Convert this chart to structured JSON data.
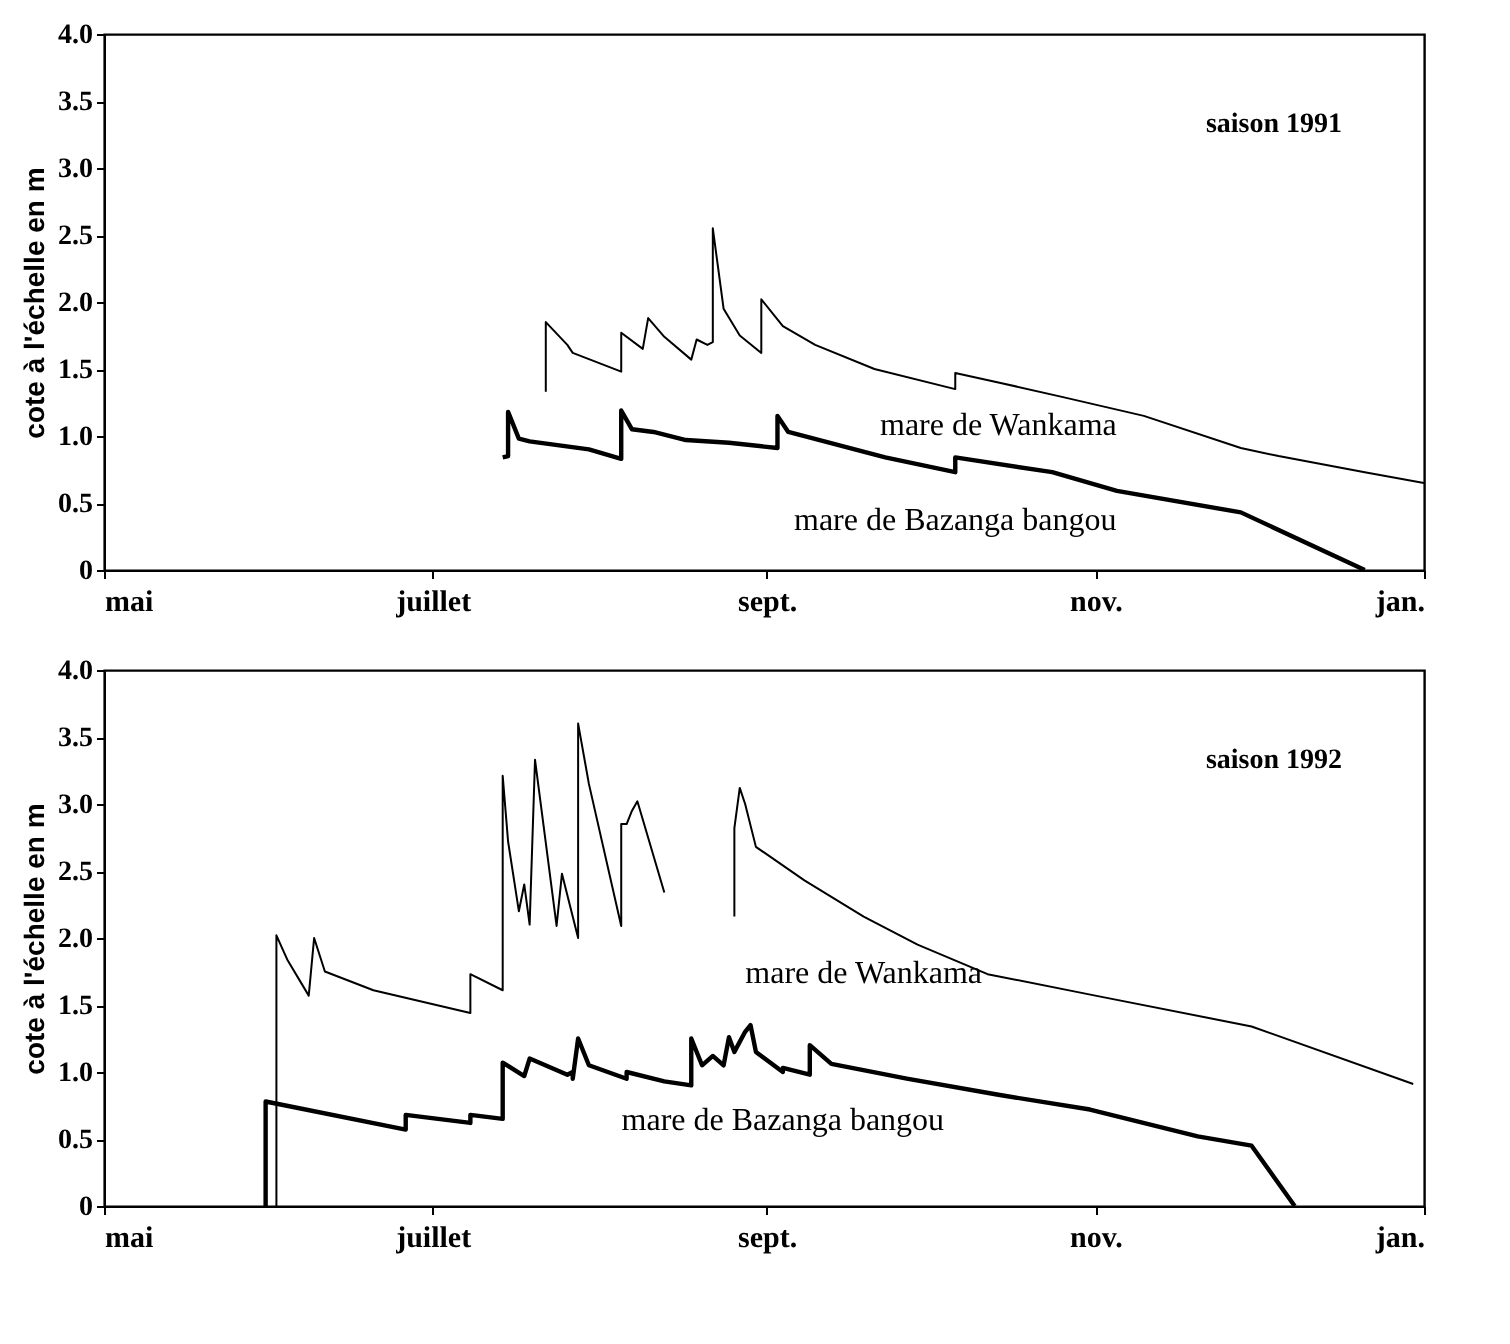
{
  "chart_data": [
    {
      "type": "line",
      "ylabel": "cote à l'échelle en m",
      "annotations": [
        "saison 1991"
      ],
      "xlim": [
        "1991-05-01",
        "1992-01-01"
      ],
      "xticks": [
        {
          "value": "1991-05-01",
          "label": "mai"
        },
        {
          "value": "1991-07-01",
          "label": "juillet"
        },
        {
          "value": "1991-09-01",
          "label": "sept."
        },
        {
          "value": "1991-11-01",
          "label": "nov."
        },
        {
          "value": "1992-01-01",
          "label": "jan."
        }
      ],
      "ylim": [
        0,
        4
      ],
      "yticks": [
        0,
        0.5,
        {
          "value": 1,
          "label": "1.0"
        },
        1.5,
        {
          "value": 2,
          "label": "2.0"
        },
        2.5,
        {
          "value": 3,
          "label": "3.0"
        },
        3.5,
        {
          "value": 4,
          "label": "4.0"
        }
      ],
      "grid": false,
      "legend": false,
      "marker": "none",
      "line_style": "solid",
      "series": [
        {
          "name": "mare de Wankama",
          "color": "#000000",
          "x": [
            "1991-07-22",
            "1991-07-22",
            "1991-07-26",
            "1991-07-27",
            "1991-08-05",
            "1991-08-05",
            "1991-08-09",
            "1991-08-10",
            "1991-08-13",
            "1991-08-18",
            "1991-08-19",
            "1991-08-21",
            "1991-08-22",
            "1991-08-22",
            "1991-08-24",
            "1991-08-27",
            "1991-08-31",
            "1991-08-31",
            "1991-09-04",
            "1991-09-10",
            "1991-09-21",
            "1991-10-06",
            "1991-10-06",
            "1991-10-14",
            "1991-10-26",
            "1991-11-10",
            "1991-11-28",
            "1991-12-05",
            "1991-12-21",
            "1992-01-01"
          ],
          "values": [
            1.33,
            1.85,
            1.68,
            1.62,
            1.48,
            1.77,
            1.65,
            1.88,
            1.74,
            1.57,
            1.72,
            1.68,
            1.7,
            2.55,
            1.95,
            1.75,
            1.62,
            2.02,
            1.82,
            1.68,
            1.5,
            1.35,
            1.47,
            1.4,
            1.29,
            1.15,
            0.91,
            0.85,
            0.73,
            0.65
          ]
        },
        {
          "name": "mare de Bazanga bangou",
          "color": "#000000",
          "x": [
            "1991-07-14",
            "1991-07-15",
            "1991-07-15",
            "1991-07-17",
            "1991-07-19",
            "1991-07-30",
            "1991-08-05",
            "1991-08-05",
            "1991-08-07",
            "1991-08-11",
            "1991-08-17",
            "1991-08-25",
            "1991-09-03",
            "1991-09-03",
            "1991-09-05",
            "1991-09-23",
            "1991-10-06",
            "1991-10-06",
            "1991-10-24",
            "1991-11-05",
            "1991-11-28",
            "1991-12-21"
          ],
          "values": [
            0.84,
            0.85,
            1.18,
            0.98,
            0.96,
            0.9,
            0.83,
            1.19,
            1.05,
            1.03,
            0.97,
            0.95,
            0.91,
            1.15,
            1.03,
            0.84,
            0.73,
            0.84,
            0.73,
            0.59,
            0.43,
            0
          ]
        }
      ]
    },
    {
      "type": "line",
      "ylabel": "cote à l'échelle en m",
      "annotations": [
        "saison 1992"
      ],
      "xlim": [
        "1992-05-01",
        "1993-01-01"
      ],
      "xticks": [
        {
          "value": "1992-05-01",
          "label": "mai"
        },
        {
          "value": "1992-07-01",
          "label": "juillet"
        },
        {
          "value": "1992-09-01",
          "label": "sept."
        },
        {
          "value": "1992-11-01",
          "label": "nov."
        },
        {
          "value": "1993-01-01",
          "label": "jan."
        }
      ],
      "ylim": [
        0,
        4
      ],
      "yticks": [
        0,
        0.5,
        {
          "value": 1,
          "label": "1.0"
        },
        1.5,
        {
          "value": 2,
          "label": "2.0"
        },
        2.5,
        {
          "value": 3,
          "label": "3.0"
        },
        3.5,
        {
          "value": 4,
          "label": "4.0"
        }
      ],
      "grid": false,
      "legend": false,
      "marker": "none",
      "line_style": "solid",
      "series": [
        {
          "name": "mare de Wankama",
          "color": "#000000",
          "x": [
            "1992-06-02",
            "1992-06-02",
            "1992-06-04",
            "1992-06-08",
            "1992-06-09",
            "1992-06-11",
            "1992-06-20",
            "1992-07-08",
            "1992-07-08",
            "1992-07-14",
            "1992-07-14",
            "1992-07-15",
            "1992-07-17",
            "1992-07-18",
            "1992-07-19",
            "1992-07-20",
            "1992-07-24",
            "1992-07-25",
            "1992-07-28",
            "1992-07-28",
            "1992-07-30",
            "1992-08-05",
            "1992-08-05",
            "1992-08-06",
            "1992-08-07",
            "1992-08-08",
            "1992-08-13",
            "1992-08-20",
            "1992-08-26",
            "1992-08-26",
            "1992-08-27",
            "1992-08-28",
            "1992-08-30",
            "1992-09-08",
            "1992-09-19",
            "1992-09-29",
            "1992-10-12",
            "1992-11-01",
            "1992-11-30",
            "1992-12-30"
          ],
          "values": [
            0,
            2.02,
            1.84,
            1.57,
            2.0,
            1.75,
            1.61,
            1.44,
            1.73,
            1.61,
            3.21,
            2.72,
            2.2,
            2.4,
            2.1,
            3.33,
            2.09,
            2.48,
            2.0,
            3.6,
            3.15,
            2.09,
            2.85,
            2.85,
            2.95,
            3.02,
            2.34,
            null,
            2.16,
            2.82,
            3.12,
            3.0,
            2.68,
            2.43,
            2.16,
            1.95,
            1.73,
            1.57,
            1.34,
            0.91
          ]
        },
        {
          "name": "mare de Bazanga bangou",
          "color": "#000000",
          "x": [
            "1992-05-31",
            "1992-05-31",
            "1992-06-26",
            "1992-06-26",
            "1992-07-08",
            "1992-07-08",
            "1992-07-14",
            "1992-07-14",
            "1992-07-18",
            "1992-07-19",
            "1992-07-26",
            "1992-07-27",
            "1992-07-27",
            "1992-07-28",
            "1992-07-30",
            "1992-08-06",
            "1992-08-06",
            "1992-08-13",
            "1992-08-18",
            "1992-08-18",
            "1992-08-20",
            "1992-08-22",
            "1992-08-24",
            "1992-08-25",
            "1992-08-26",
            "1992-08-28",
            "1992-08-29",
            "1992-08-30",
            "1992-09-04",
            "1992-09-04",
            "1992-09-09",
            "1992-09-09",
            "1992-09-13",
            "1992-09-27",
            "1992-10-14",
            "1992-10-31",
            "1992-11-20",
            "1992-11-30",
            "1992-12-08"
          ],
          "values": [
            0,
            0.78,
            0.57,
            0.68,
            0.62,
            0.68,
            0.65,
            1.07,
            0.97,
            1.1,
            0.98,
            1.0,
            0.95,
            1.25,
            1.05,
            0.95,
            1.0,
            0.93,
            0.9,
            1.25,
            1.05,
            1.12,
            1.05,
            1.26,
            1.15,
            1.3,
            1.35,
            1.15,
            1.0,
            1.03,
            0.98,
            1.2,
            1.06,
            0.95,
            0.83,
            0.72,
            0.52,
            0.45,
            0
          ]
        }
      ]
    }
  ]
}
